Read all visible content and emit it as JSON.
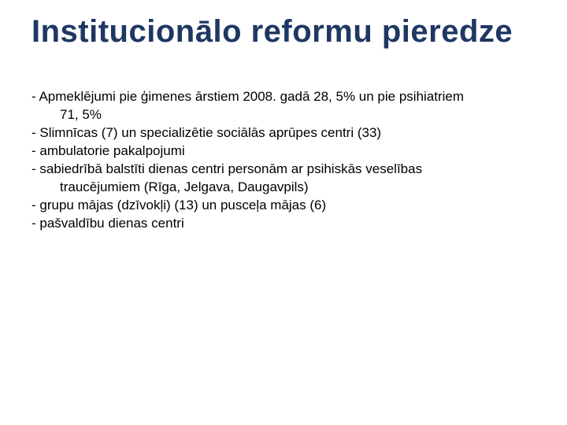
{
  "title_color": "#1f3763",
  "body_color": "#000000",
  "background_color": "#ffffff",
  "title_fontsize": 40,
  "body_fontsize": 17,
  "title": "Institucionālo reformu pieredze",
  "bullets": [
    {
      "text": "- Apmeklējumi pie ģimenes ārstiem 2008. gadā 28, 5% un pie psihiatriem",
      "indent": false
    },
    {
      "text": "71, 5%",
      "indent": true
    },
    {
      "text": "- Slimnīcas (7) un specializētie sociālās aprūpes centri (33)",
      "indent": false
    },
    {
      "text": "- ambulatorie pakalpojumi",
      "indent": false
    },
    {
      "text": "- sabiedrībā balstīti dienas centri personām ar psihiskās veselības",
      "indent": false
    },
    {
      "text": "traucējumiem (Rīga, Jelgava, Daugavpils)",
      "indent": true
    },
    {
      "text": "- grupu mājas (dzīvokļi) (13)  un pusceļa mājas (6)",
      "indent": false
    },
    {
      "text": "- pašvaldību dienas centri",
      "indent": false
    }
  ]
}
